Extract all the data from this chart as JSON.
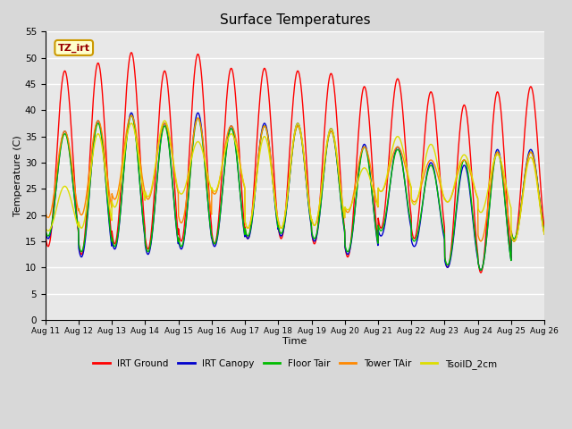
{
  "title": "Surface Temperatures",
  "xlabel": "Time",
  "ylabel": "Temperature (C)",
  "ylim": [
    0,
    55
  ],
  "yticks": [
    0,
    5,
    10,
    15,
    20,
    25,
    30,
    35,
    40,
    45,
    50,
    55
  ],
  "num_days": 15,
  "annotation_text": "TZ_irt",
  "background_color": "#d8d8d8",
  "plot_bg_color": "#e8e8e8",
  "grid_color": "#ffffff",
  "series": [
    {
      "label": "IRT Ground",
      "color": "#ff0000",
      "peaks": [
        47.5,
        49.0,
        51.0,
        47.5,
        50.7,
        48.0,
        48.0,
        47.5,
        47.0,
        44.5,
        46.0,
        43.5,
        41.0,
        43.5,
        44.5
      ],
      "troughs": [
        14.0,
        12.5,
        14.5,
        13.5,
        15.0,
        14.5,
        15.5,
        15.5,
        14.5,
        12.0,
        17.5,
        15.5,
        10.0,
        9.0,
        15.0
      ]
    },
    {
      "label": "IRT Canopy",
      "color": "#0000cc",
      "peaks": [
        36.0,
        38.0,
        39.5,
        37.5,
        39.5,
        37.0,
        37.5,
        37.5,
        36.5,
        33.5,
        33.0,
        30.0,
        29.5,
        32.5,
        32.5
      ],
      "troughs": [
        15.5,
        12.0,
        13.5,
        12.5,
        13.5,
        14.0,
        15.5,
        16.0,
        15.0,
        12.5,
        16.0,
        14.0,
        10.0,
        9.5,
        15.0
      ]
    },
    {
      "label": "Floor Tair",
      "color": "#00bb00",
      "peaks": [
        35.5,
        37.5,
        39.0,
        37.0,
        38.5,
        36.5,
        37.0,
        37.0,
        36.0,
        33.0,
        32.5,
        29.5,
        30.5,
        32.0,
        32.0
      ],
      "troughs": [
        16.0,
        13.0,
        14.0,
        13.0,
        14.0,
        14.5,
        16.0,
        16.5,
        15.5,
        13.0,
        17.0,
        15.0,
        10.5,
        9.5,
        15.5
      ]
    },
    {
      "label": "Tower TAir",
      "color": "#ff8800",
      "peaks": [
        36.0,
        38.0,
        39.0,
        37.5,
        38.5,
        37.0,
        37.0,
        37.0,
        36.0,
        33.0,
        33.0,
        30.5,
        30.5,
        32.0,
        32.0
      ],
      "troughs": [
        19.5,
        20.0,
        23.0,
        23.0,
        18.5,
        24.0,
        17.5,
        17.5,
        18.0,
        20.5,
        24.5,
        22.5,
        22.5,
        15.0,
        15.0
      ]
    },
    {
      "label": "TsoilD_2cm",
      "color": "#dddd00",
      "peaks": [
        25.5,
        35.5,
        37.5,
        38.0,
        34.0,
        35.5,
        35.0,
        37.5,
        36.5,
        29.0,
        35.0,
        33.5,
        31.5,
        31.5,
        31.0
      ],
      "troughs": [
        17.0,
        17.5,
        21.5,
        23.5,
        24.0,
        24.5,
        17.5,
        17.5,
        18.0,
        21.0,
        24.5,
        22.0,
        22.5,
        20.5,
        15.0
      ]
    }
  ]
}
